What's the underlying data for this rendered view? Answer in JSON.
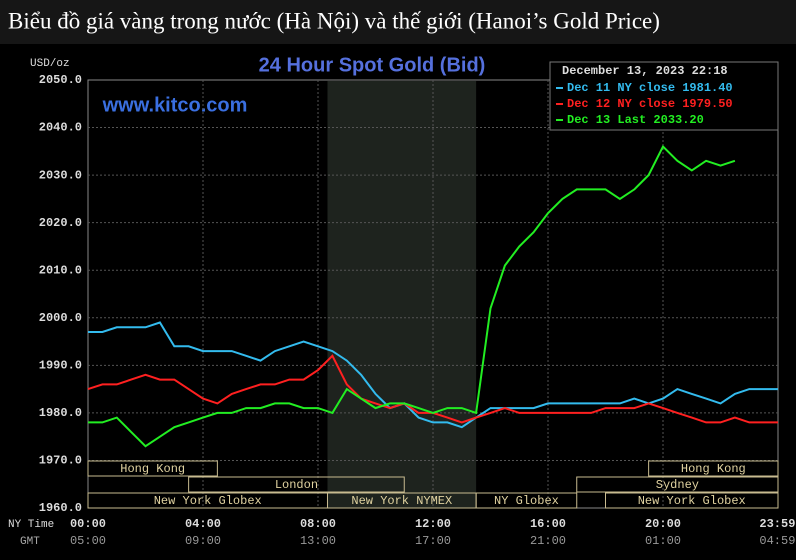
{
  "header": {
    "title": "Biểu đồ giá vàng trong nước (Hà Nội) và thế giới (Hanoi’s Gold Price)"
  },
  "chart_data": {
    "type": "line",
    "title": "24 Hour Spot Gold (Bid)",
    "watermark": "www.kitco.com",
    "y_label": "USD/oz",
    "timestamp": "December 13, 2023 22:18",
    "x_row_labels": [
      "NY Time",
      "GMT"
    ],
    "x": [
      0,
      0.5,
      1,
      1.5,
      2,
      2.5,
      3,
      3.5,
      4,
      4.5,
      5,
      5.5,
      6,
      6.5,
      7,
      7.5,
      8,
      8.5,
      9,
      9.5,
      10,
      10.5,
      11,
      11.5,
      12,
      12.5,
      13,
      13.5,
      14,
      14.5,
      15,
      15.5,
      16,
      16.5,
      17,
      17.5,
      18,
      18.5,
      19,
      19.5,
      20,
      20.5,
      21,
      21.5,
      22,
      22.5,
      23,
      23.5,
      24
    ],
    "series": [
      {
        "name": "Dec 11 NY close 1981.40",
        "color": "#33bbee",
        "values": [
          1997,
          1997,
          1998,
          1998,
          1998,
          1999,
          1994,
          1994,
          1993,
          1993,
          1993,
          1992,
          1991,
          1993,
          1994,
          1995,
          1994,
          1993,
          1991,
          1988,
          1984,
          1981,
          1982,
          1979,
          1978,
          1978,
          1977,
          1979,
          1981,
          1981,
          1981,
          1981,
          1982,
          1982,
          1982,
          1982,
          1982,
          1982,
          1983,
          1982,
          1983,
          1985,
          1984,
          1983,
          1982,
          1984,
          1985,
          1985,
          1985
        ]
      },
      {
        "name": "Dec 12 NY close 1979.50",
        "color": "#ff2020",
        "values": [
          1985,
          1986,
          1986,
          1987,
          1988,
          1987,
          1987,
          1985,
          1983,
          1982,
          1984,
          1985,
          1986,
          1986,
          1987,
          1987,
          1989,
          1992,
          1986,
          1983,
          1982,
          1981,
          1982,
          1980,
          1980,
          1979,
          1978,
          1979,
          1980,
          1981,
          1980,
          1980,
          1980,
          1980,
          1980,
          1980,
          1981,
          1981,
          1981,
          1982,
          1981,
          1980,
          1979,
          1978,
          1978,
          1979,
          1978,
          1978,
          1978
        ]
      },
      {
        "name": "Dec 13 Last 2033.20",
        "color": "#22ee22",
        "values": [
          1978,
          1978,
          1979,
          1976,
          1973,
          1975,
          1977,
          1978,
          1979,
          1980,
          1980,
          1981,
          1981,
          1982,
          1982,
          1981,
          1981,
          1980,
          1985,
          1983,
          1981,
          1982,
          1982,
          1981,
          1980,
          1981,
          1981,
          1980,
          2002,
          2011,
          2015,
          2018,
          2022,
          2025,
          2027,
          2027,
          2027,
          2025,
          2027,
          2030,
          2036,
          2033,
          2031,
          2033,
          2032,
          2033,
          null,
          null,
          null
        ]
      }
    ],
    "xlim": [
      0,
      24
    ],
    "xticks": [
      {
        "value": 0,
        "label": "00:00"
      },
      {
        "value": 4,
        "label": "04:00"
      },
      {
        "value": 8,
        "label": "08:00"
      },
      {
        "value": 12,
        "label": "12:00"
      },
      {
        "value": 16,
        "label": "16:00"
      },
      {
        "value": 20,
        "label": "20:00"
      },
      {
        "value": 23.98,
        "label": "23:59"
      }
    ],
    "gmt_labels": [
      "05:00",
      "09:00",
      "13:00",
      "17:00",
      "21:00",
      "01:00",
      "04:59"
    ],
    "ylim": [
      1960,
      2050
    ],
    "yticks": [
      {
        "value": 1960,
        "label": "1960.0"
      },
      {
        "value": 1970,
        "label": "1970.0"
      },
      {
        "value": 1980,
        "label": "1980.0"
      },
      {
        "value": 1990,
        "label": "1990.0"
      },
      {
        "value": 2000,
        "label": "2000.0"
      },
      {
        "value": 2010,
        "label": "2010.0"
      },
      {
        "value": 2020,
        "label": "2020.0"
      },
      {
        "value": 2030,
        "label": "2030.0"
      },
      {
        "value": 2040,
        "label": "2040.0"
      },
      {
        "value": 2050,
        "label": "2050.0"
      }
    ],
    "grid": true,
    "shaded_region": [
      8.33,
      13.5
    ],
    "sessions": [
      {
        "label": "Hong Kong",
        "start": 0,
        "end": 4.5,
        "row": 0
      },
      {
        "label": "London",
        "start": 3.5,
        "end": 11,
        "row": 1
      },
      {
        "label": "New York Globex",
        "start": 0,
        "end": 8.33,
        "row": 2
      },
      {
        "label": "New York NYMEX",
        "start": 8.33,
        "end": 13.5,
        "row": 2
      },
      {
        "label": "NY Globex",
        "start": 13.5,
        "end": 17,
        "row": 2
      },
      {
        "label": "Hong Kong",
        "start": 19.5,
        "end": 24,
        "row": 0
      },
      {
        "label": "Sydney",
        "start": 17,
        "end": 24,
        "row": 1
      },
      {
        "label": "New York Globex",
        "start": 18,
        "end": 24,
        "row": 2
      }
    ]
  }
}
